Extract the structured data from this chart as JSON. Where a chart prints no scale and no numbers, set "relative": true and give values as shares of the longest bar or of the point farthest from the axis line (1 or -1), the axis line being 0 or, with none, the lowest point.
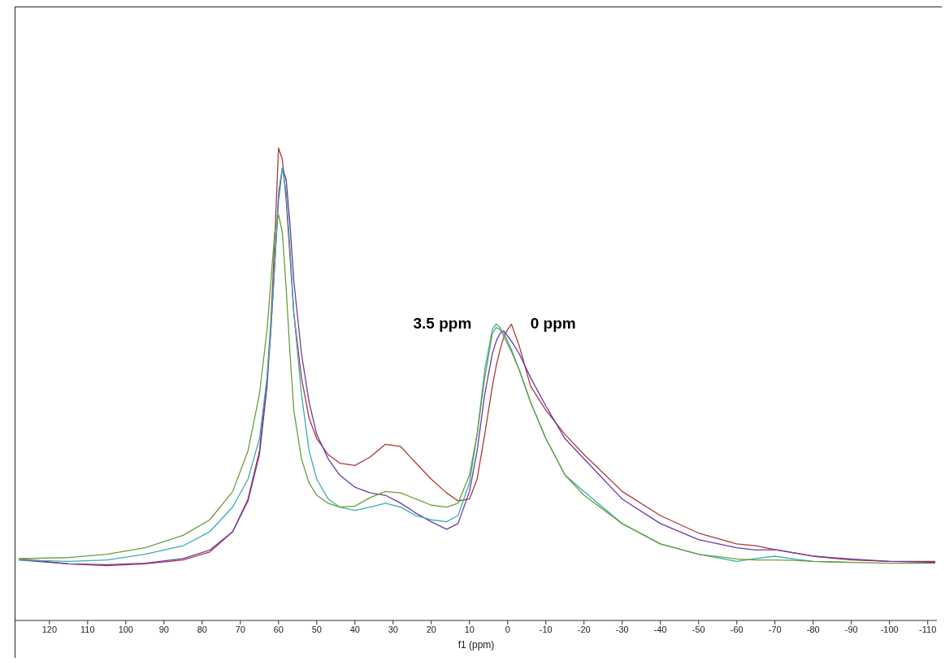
{
  "chart_data": {
    "type": "line",
    "relative": true,
    "xlabel": "f1 (ppm)",
    "tick_labels": "x",
    "grid": false,
    "legend": false,
    "marker": "none",
    "line_style": "solid",
    "xlim": [
      128.9,
      -112.4
    ],
    "xticks": [
      120,
      110,
      100,
      90,
      80,
      70,
      60,
      50,
      40,
      30,
      20,
      10,
      0,
      -10,
      -20,
      -30,
      -40,
      -50,
      -60,
      -70,
      -80,
      -90,
      -100,
      -110
    ],
    "x": [
      128,
      115,
      105,
      95,
      85,
      78,
      72,
      68,
      65,
      63,
      62,
      61,
      60,
      59,
      58,
      57,
      56,
      54,
      52,
      50,
      47,
      44,
      40,
      36,
      32,
      28,
      24,
      20,
      16,
      13,
      10,
      8,
      6,
      4,
      3,
      2,
      1,
      0,
      -1,
      -3,
      -6,
      -10,
      -15,
      -20,
      -30,
      -40,
      -50,
      -60,
      -65,
      -70,
      -75,
      -80,
      -90,
      -100,
      -112
    ],
    "annotations": [
      {
        "text": "3.5 ppm",
        "x": 3.5,
        "y": 0.63
      },
      {
        "text": "0 ppm",
        "x": 0,
        "y": 0.63
      }
    ],
    "series": [
      {
        "color": "#a83a3a",
        "values": [
          0.131,
          0.12,
          0.116,
          0.12,
          0.128,
          0.145,
          0.188,
          0.257,
          0.359,
          0.514,
          0.633,
          0.805,
          1.0,
          0.976,
          0.89,
          0.77,
          0.651,
          0.514,
          0.428,
          0.385,
          0.351,
          0.333,
          0.328,
          0.346,
          0.373,
          0.368,
          0.333,
          0.299,
          0.27,
          0.253,
          0.257,
          0.299,
          0.394,
          0.496,
          0.539,
          0.573,
          0.6,
          0.616,
          0.627,
          0.582,
          0.496,
          0.445,
          0.394,
          0.351,
          0.273,
          0.222,
          0.185,
          0.162,
          0.158,
          0.15,
          0.143,
          0.136,
          0.128,
          0.125,
          0.125
        ]
      },
      {
        "color": "#6a3aa8",
        "values": [
          0.128,
          0.12,
          0.118,
          0.121,
          0.131,
          0.149,
          0.188,
          0.253,
          0.351,
          0.496,
          0.616,
          0.753,
          0.89,
          0.958,
          0.933,
          0.839,
          0.719,
          0.565,
          0.462,
          0.394,
          0.342,
          0.308,
          0.282,
          0.27,
          0.265,
          0.248,
          0.227,
          0.209,
          0.193,
          0.205,
          0.273,
          0.359,
          0.479,
          0.565,
          0.591,
          0.608,
          0.613,
          0.602,
          0.591,
          0.565,
          0.514,
          0.454,
          0.385,
          0.342,
          0.257,
          0.205,
          0.171,
          0.154,
          0.149,
          0.15,
          0.143,
          0.136,
          0.13,
          0.125,
          0.123
        ]
      },
      {
        "color": "#3aacb0",
        "values": [
          0.128,
          0.125,
          0.128,
          0.14,
          0.158,
          0.188,
          0.24,
          0.299,
          0.385,
          0.514,
          0.616,
          0.753,
          0.907,
          0.958,
          0.907,
          0.788,
          0.651,
          0.479,
          0.359,
          0.299,
          0.257,
          0.24,
          0.233,
          0.24,
          0.248,
          0.24,
          0.222,
          0.213,
          0.209,
          0.222,
          0.291,
          0.394,
          0.531,
          0.616,
          0.628,
          0.62,
          0.608,
          0.591,
          0.573,
          0.531,
          0.462,
          0.385,
          0.308,
          0.273,
          0.205,
          0.162,
          0.14,
          0.125,
          0.131,
          0.136,
          0.13,
          0.125,
          0.123,
          null,
          null
        ]
      },
      {
        "color": "#6a9e3a",
        "values": [
          0.131,
          0.133,
          0.14,
          0.154,
          0.18,
          0.213,
          0.273,
          0.359,
          0.479,
          0.616,
          0.719,
          0.821,
          0.859,
          0.821,
          0.702,
          0.565,
          0.445,
          0.342,
          0.291,
          0.265,
          0.248,
          0.24,
          0.242,
          0.26,
          0.273,
          0.27,
          0.257,
          0.244,
          0.24,
          0.248,
          0.308,
          0.394,
          0.514,
          0.608,
          0.62,
          0.616,
          0.602,
          0.585,
          0.569,
          0.531,
          0.462,
          0.385,
          0.308,
          0.265,
          0.205,
          0.162,
          0.14,
          0.13,
          0.128,
          0.128,
          0.127,
          0.125,
          0.123,
          0.121,
          0.121
        ]
      }
    ]
  }
}
